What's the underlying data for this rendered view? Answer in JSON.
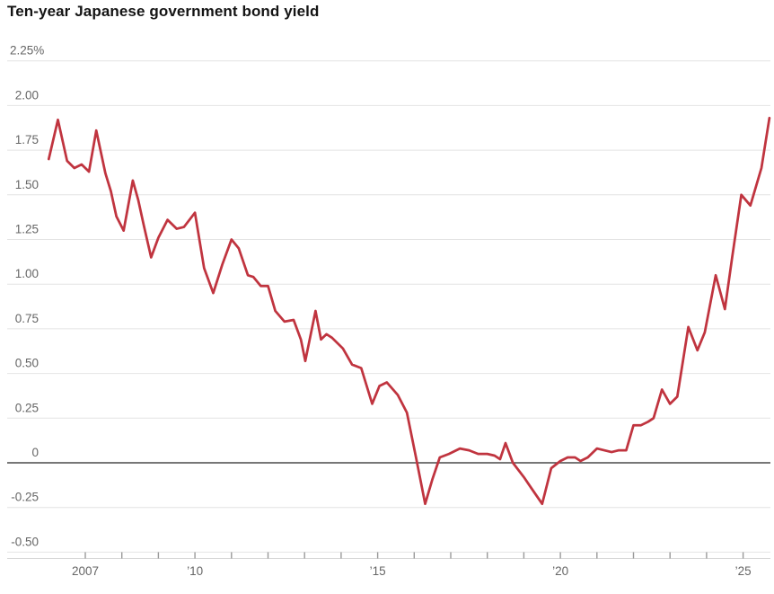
{
  "chart_data": {
    "type": "line",
    "title": "Ten-year Japanese government bond yield",
    "xlabel": "",
    "ylabel": "",
    "legend_position": "none",
    "grid": "horizontal",
    "ylim": [
      -0.5,
      2.25
    ],
    "xlim": [
      2004.85,
      2025.85
    ],
    "colors": {
      "line": "#c0343f",
      "grid": "#e4e4e4",
      "zero_line": "#4a4a4a",
      "axis_line": "#d8d8d8",
      "tick": "#999999",
      "axis_text": "#666666",
      "title_text": "#141414",
      "background": "#ffffff"
    },
    "y_ticks": [
      {
        "value": 2.25,
        "label": "2.25%"
      },
      {
        "value": 2.0,
        "label": "2.00"
      },
      {
        "value": 1.75,
        "label": "1.75"
      },
      {
        "value": 1.5,
        "label": "1.50"
      },
      {
        "value": 1.25,
        "label": "1.25"
      },
      {
        "value": 1.0,
        "label": "1.00"
      },
      {
        "value": 0.75,
        "label": "0.75"
      },
      {
        "value": 0.5,
        "label": "0.50"
      },
      {
        "value": 0.25,
        "label": "0.25"
      },
      {
        "value": 0,
        "label": "0"
      },
      {
        "value": -0.25,
        "label": "-0.25"
      },
      {
        "value": -0.5,
        "label": "-0.50"
      }
    ],
    "x_tick_years": [
      2007,
      2008,
      2009,
      2010,
      2011,
      2012,
      2013,
      2014,
      2015,
      2016,
      2017,
      2018,
      2019,
      2020,
      2021,
      2022,
      2023,
      2024,
      2025
    ],
    "x_tick_labels": [
      {
        "year": 2007,
        "label": "2007"
      },
      {
        "year": 2010,
        "label": "’10"
      },
      {
        "year": 2015,
        "label": "’15"
      },
      {
        "year": 2020,
        "label": "’20"
      },
      {
        "year": 2025,
        "label": "’25"
      }
    ],
    "series": [
      {
        "name": "Ten-year Japanese government bond yield (%)",
        "points": [
          [
            2006.0,
            1.7
          ],
          [
            2006.25,
            1.92
          ],
          [
            2006.5,
            1.69
          ],
          [
            2006.7,
            1.65
          ],
          [
            2006.9,
            1.67
          ],
          [
            2007.1,
            1.63
          ],
          [
            2007.3,
            1.86
          ],
          [
            2007.55,
            1.62
          ],
          [
            2007.7,
            1.52
          ],
          [
            2007.85,
            1.38
          ],
          [
            2008.05,
            1.3
          ],
          [
            2008.3,
            1.58
          ],
          [
            2008.45,
            1.47
          ],
          [
            2008.6,
            1.33
          ],
          [
            2008.8,
            1.15
          ],
          [
            2009.0,
            1.26
          ],
          [
            2009.25,
            1.36
          ],
          [
            2009.5,
            1.31
          ],
          [
            2009.7,
            1.32
          ],
          [
            2010.0,
            1.4
          ],
          [
            2010.25,
            1.09
          ],
          [
            2010.5,
            0.95
          ],
          [
            2010.75,
            1.11
          ],
          [
            2011.0,
            1.25
          ],
          [
            2011.2,
            1.2
          ],
          [
            2011.45,
            1.05
          ],
          [
            2011.6,
            1.04
          ],
          [
            2011.8,
            0.99
          ],
          [
            2012.0,
            0.99
          ],
          [
            2012.2,
            0.85
          ],
          [
            2012.45,
            0.79
          ],
          [
            2012.7,
            0.8
          ],
          [
            2012.9,
            0.69
          ],
          [
            2013.02,
            0.57
          ],
          [
            2013.3,
            0.85
          ],
          [
            2013.45,
            0.69
          ],
          [
            2013.6,
            0.72
          ],
          [
            2013.75,
            0.7
          ],
          [
            2014.05,
            0.64
          ],
          [
            2014.3,
            0.55
          ],
          [
            2014.55,
            0.53
          ],
          [
            2014.85,
            0.33
          ],
          [
            2015.05,
            0.43
          ],
          [
            2015.25,
            0.45
          ],
          [
            2015.55,
            0.38
          ],
          [
            2015.8,
            0.28
          ],
          [
            2016.05,
            0.03
          ],
          [
            2016.3,
            -0.23
          ],
          [
            2016.5,
            -0.09
          ],
          [
            2016.7,
            0.03
          ],
          [
            2016.95,
            0.05
          ],
          [
            2017.25,
            0.08
          ],
          [
            2017.5,
            0.07
          ],
          [
            2017.75,
            0.05
          ],
          [
            2018.0,
            0.05
          ],
          [
            2018.2,
            0.04
          ],
          [
            2018.35,
            0.02
          ],
          [
            2018.5,
            0.11
          ],
          [
            2018.7,
            0.0
          ],
          [
            2019.0,
            -0.08
          ],
          [
            2019.2,
            -0.14
          ],
          [
            2019.5,
            -0.23
          ],
          [
            2019.75,
            -0.03
          ],
          [
            2020.0,
            0.01
          ],
          [
            2020.2,
            0.03
          ],
          [
            2020.4,
            0.03
          ],
          [
            2020.55,
            0.01
          ],
          [
            2020.75,
            0.03
          ],
          [
            2021.0,
            0.08
          ],
          [
            2021.2,
            0.07
          ],
          [
            2021.4,
            0.06
          ],
          [
            2021.6,
            0.07
          ],
          [
            2021.8,
            0.07
          ],
          [
            2022.0,
            0.21
          ],
          [
            2022.2,
            0.21
          ],
          [
            2022.4,
            0.23
          ],
          [
            2022.55,
            0.25
          ],
          [
            2022.78,
            0.41
          ],
          [
            2023.0,
            0.33
          ],
          [
            2023.2,
            0.37
          ],
          [
            2023.5,
            0.76
          ],
          [
            2023.75,
            0.63
          ],
          [
            2023.95,
            0.73
          ],
          [
            2024.25,
            1.05
          ],
          [
            2024.5,
            0.86
          ],
          [
            2024.7,
            1.15
          ],
          [
            2024.95,
            1.5
          ],
          [
            2025.2,
            1.44
          ],
          [
            2025.5,
            1.65
          ],
          [
            2025.72,
            1.93
          ]
        ]
      }
    ]
  }
}
